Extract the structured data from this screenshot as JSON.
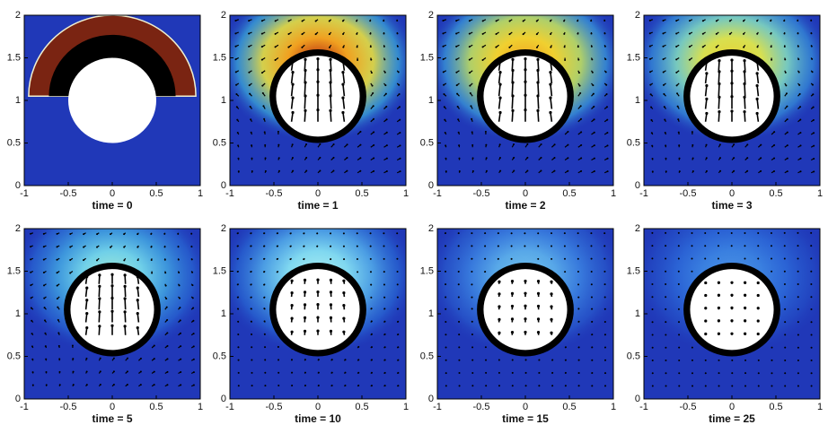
{
  "chart_data": [
    {
      "type": "field",
      "xlabel": "time = 0",
      "xlim": [
        -1,
        1
      ],
      "ylim": [
        0,
        2
      ],
      "xticks": [
        -1,
        -0.5,
        0,
        0.5,
        1
      ],
      "yticks": [
        0,
        0.5,
        1,
        1.5,
        2
      ]
    },
    {
      "type": "field",
      "xlabel": "time = 1",
      "xlim": [
        -1,
        1
      ],
      "ylim": [
        0,
        2
      ],
      "xticks": [
        -1,
        -0.5,
        0,
        0.5,
        1
      ],
      "yticks": [
        0,
        0.5,
        1,
        1.5,
        2
      ]
    },
    {
      "type": "field",
      "xlabel": "time = 2",
      "xlim": [
        -1,
        1
      ],
      "ylim": [
        0,
        2
      ],
      "xticks": [
        -1,
        -0.5,
        0,
        0.5,
        1
      ],
      "yticks": [
        0,
        0.5,
        1,
        1.5,
        2
      ]
    },
    {
      "type": "field",
      "xlabel": "time = 3",
      "xlim": [
        -1,
        1
      ],
      "ylim": [
        0,
        2
      ],
      "xticks": [
        -1,
        -0.5,
        0,
        0.5,
        1
      ],
      "yticks": [
        0,
        0.5,
        1,
        1.5,
        2
      ]
    },
    {
      "type": "field",
      "xlabel": "time = 5",
      "xlim": [
        -1,
        1
      ],
      "ylim": [
        0,
        2
      ],
      "xticks": [
        -1,
        -0.5,
        0,
        0.5,
        1
      ],
      "yticks": [
        0,
        0.5,
        1,
        1.5,
        2
      ]
    },
    {
      "type": "field",
      "xlabel": "time = 10",
      "xlim": [
        -1,
        1
      ],
      "ylim": [
        0,
        2
      ],
      "xticks": [
        -1,
        -0.5,
        0,
        0.5,
        1
      ],
      "yticks": [
        0,
        0.5,
        1,
        1.5,
        2
      ]
    },
    {
      "type": "field",
      "xlabel": "time = 15",
      "xlim": [
        -1,
        1
      ],
      "ylim": [
        0,
        2
      ],
      "xticks": [
        -1,
        -0.5,
        0,
        0.5,
        1
      ],
      "yticks": [
        0,
        0.5,
        1,
        1.5,
        2
      ]
    },
    {
      "type": "field",
      "xlabel": "time = 25",
      "xlim": [
        -1,
        1
      ],
      "ylim": [
        0,
        2
      ],
      "xticks": [
        -1,
        -0.5,
        0,
        0.5,
        1
      ],
      "yticks": [
        0,
        0.5,
        1,
        1.5,
        2
      ]
    }
  ]
}
